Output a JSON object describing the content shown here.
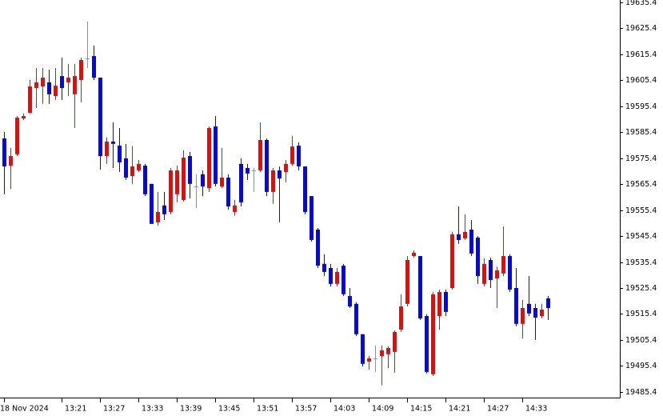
{
  "chart_data": {
    "type": "candlestick",
    "bull_color": "#ff0000",
    "bear_color": "#0000ff",
    "doji_color": "#5fae8a",
    "categories": [
      "18 Nov 2024",
      null,
      null,
      null,
      null,
      null,
      null,
      null,
      null,
      "13:21",
      null,
      null,
      null,
      null,
      null,
      "13:27",
      null,
      null,
      null,
      null,
      null,
      "13:33",
      null,
      null,
      null,
      null,
      null,
      "13:39",
      null,
      null,
      null,
      null,
      null,
      "13:45",
      null,
      null,
      null,
      null,
      null,
      "13:51",
      null,
      null,
      null,
      null,
      null,
      "13:57",
      null,
      null,
      null,
      null,
      null,
      "14:03",
      null,
      null,
      null,
      null,
      null,
      "14:09",
      null,
      null,
      null,
      null,
      null,
      "14:15",
      null,
      null,
      null,
      null,
      null,
      "14:21",
      null,
      null,
      null,
      null,
      null,
      "14:27",
      null,
      null,
      null,
      null,
      null,
      "14:33",
      null,
      null,
      null,
      null
    ],
    "open": [
      19583.0,
      19572.5,
      19576.9,
      19590.7,
      19592.9,
      19602.4,
      19603.0,
      19604.6,
      19599.3,
      19607.0,
      19604.6,
      19600.0,
      19605.5,
      19613.8,
      19614.7,
      19606.4,
      19576.2,
      19581.8,
      19580.2,
      19575.3,
      19568.5,
      19570.7,
      19572.5,
      19565.5,
      19550.7,
      19557.2,
      19554.7,
      19561.5,
      19559.3,
      19576.2,
      19564.5,
      19569.2,
      19563.9,
      19587.6,
      19564.5,
      19567.9,
      19554.7,
      19573.2,
      19571.6,
      19570.7,
      19570.7,
      19582.4,
      19562.4,
      19570.7,
      19570.1,
      19573.2,
      19580.2,
      19572.2,
      19560.8,
      19547.9,
      19534.7,
      19533.1,
      19527.0,
      19534.0,
      19522.3,
      19519.3,
      19507.6,
      19497.1,
      19498.3,
      19499.2,
      19499.9,
      19500.8,
      19509.4,
      19519.3,
      19537.7,
      19537.7,
      19514.6,
      19492.2,
      19514.6,
      19523.9,
      19525.4,
      19546.1,
      19544.5,
      19547.9,
      19544.8,
      19527.0,
      19536.2,
      19529.1,
      19531.0,
      19537.7,
      19525.4,
      19511.6,
      19519.3,
      19517.7,
      19514.6,
      19521.4
    ],
    "high": [
      19585.5,
      19579.3,
      19591.6,
      19592.6,
      19605.5,
      19610.1,
      19610.1,
      19609.5,
      19610.1,
      19614.1,
      19611.7,
      19611.7,
      19614.1,
      19628.0,
      19618.7,
      19606.4,
      19583.3,
      19589.2,
      19587.0,
      19580.9,
      19580.0,
      19574.7,
      19573.2,
      19565.5,
      19562.4,
      19562.4,
      19571.6,
      19572.5,
      19578.4,
      19577.8,
      19569.2,
      19570.7,
      19587.6,
      19591.6,
      19579.3,
      19569.2,
      19559.3,
      19575.3,
      19573.2,
      19571.6,
      19589.2,
      19583.0,
      19571.6,
      19572.2,
      19574.7,
      19583.9,
      19581.5,
      19572.2,
      19560.8,
      19548.5,
      19538.4,
      19534.7,
      19533.1,
      19534.7,
      19525.4,
      19519.9,
      19507.6,
      19499.2,
      19503.3,
      19503.3,
      19503.0,
      19509.1,
      19523.0,
      19537.7,
      19539.9,
      19537.7,
      19515.3,
      19523.9,
      19524.8,
      19524.8,
      19547.0,
      19556.8,
      19553.8,
      19551.6,
      19545.4,
      19536.8,
      19537.1,
      19533.7,
      19549.1,
      19538.4,
      19533.1,
      19520.8,
      19530.0,
      19519.3,
      19519.3,
      19522.3
    ],
    "low": [
      19561.5,
      19563.6,
      19576.2,
      19590.1,
      19592.6,
      19594.7,
      19596.3,
      19596.3,
      19597.8,
      19597.8,
      19599.3,
      19587.0,
      19596.9,
      19610.1,
      19605.5,
      19571.0,
      19573.2,
      19571.6,
      19570.1,
      19567.0,
      19565.5,
      19570.1,
      19560.8,
      19550.1,
      19549.4,
      19551.6,
      19553.8,
      19558.4,
      19558.7,
      19559.9,
      19556.2,
      19560.8,
      19562.4,
      19564.5,
      19563.9,
      19555.6,
      19553.2,
      19556.8,
      19567.0,
      19562.4,
      19570.1,
      19560.8,
      19557.8,
      19550.7,
      19566.1,
      19572.5,
      19570.7,
      19553.8,
      19543.3,
      19533.1,
      19530.0,
      19526.0,
      19526.0,
      19522.3,
      19517.7,
      19506.9,
      19495.2,
      19494.0,
      19493.1,
      19487.9,
      19494.6,
      19492.8,
      19508.5,
      19518.3,
      19537.1,
      19513.1,
      19492.5,
      19491.5,
      19509.4,
      19514.6,
      19524.8,
      19542.4,
      19543.9,
      19537.7,
      19527.0,
      19526.0,
      19525.4,
      19517.7,
      19530.0,
      19523.9,
      19510.6,
      19506.0,
      19514.6,
      19505.4,
      19513.7,
      19513.1
    ],
    "close": [
      19572.2,
      19576.2,
      19591.0,
      19591.6,
      19603.0,
      19604.6,
      19606.4,
      19600.0,
      19603.3,
      19602.4,
      19606.4,
      19607.0,
      19613.2,
      19613.8,
      19606.4,
      19576.2,
      19581.8,
      19580.9,
      19573.8,
      19567.9,
      19572.2,
      19573.2,
      19561.5,
      19550.1,
      19554.7,
      19553.8,
      19570.7,
      19570.7,
      19575.6,
      19565.5,
      19564.5,
      19564.5,
      19587.0,
      19565.5,
      19567.9,
      19556.8,
      19557.2,
      19558.4,
      19569.5,
      19570.7,
      19582.4,
      19562.4,
      19570.7,
      19567.6,
      19573.2,
      19579.9,
      19572.2,
      19554.7,
      19543.9,
      19534.0,
      19531.6,
      19527.0,
      19531.6,
      19523.0,
      19518.3,
      19507.6,
      19496.2,
      19498.3,
      19498.3,
      19501.4,
      19502.3,
      19508.5,
      19518.3,
      19536.2,
      19539.0,
      19513.7,
      19493.1,
      19523.0,
      19523.9,
      19516.2,
      19546.1,
      19543.9,
      19547.0,
      19538.7,
      19530.0,
      19534.7,
      19528.5,
      19532.2,
      19537.7,
      19524.8,
      19511.6,
      19517.7,
      19515.6,
      19514.0,
      19517.1,
      19517.7
    ],
    "ylim": [
      19483.2,
      19636.3
    ],
    "yticks": [
      19635.4,
      19625.4,
      19615.4,
      19605.4,
      19595.4,
      19585.4,
      19575.4,
      19565.4,
      19555.4,
      19545.4,
      19535.4,
      19525.4,
      19515.4,
      19505.4,
      19495.4,
      19485.4
    ],
    "grid": false
  }
}
